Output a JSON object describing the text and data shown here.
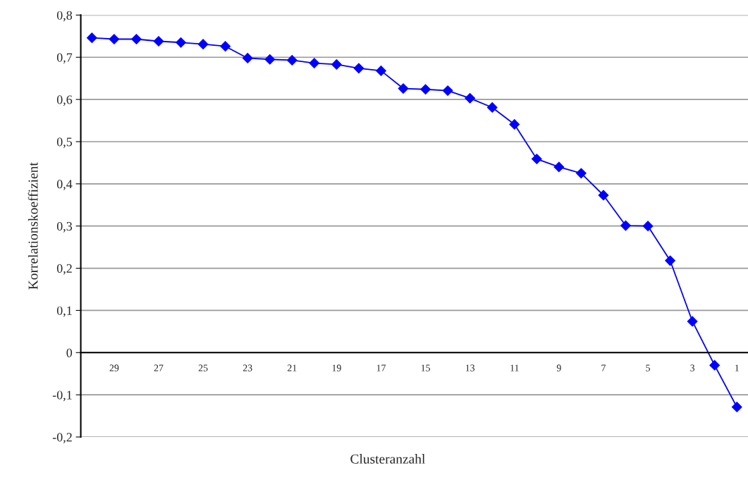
{
  "chart_data": {
    "type": "line",
    "xlabel": "Clusteranzahl",
    "ylabel": "Korrelationskoeffizient",
    "categories": [
      null,
      "29",
      null,
      "27",
      null,
      "25",
      null,
      "23",
      null,
      "21",
      null,
      "19",
      null,
      "17",
      null,
      "15",
      null,
      "13",
      null,
      "11",
      null,
      "9",
      null,
      "7",
      null,
      "5",
      null,
      "3",
      null,
      "1"
    ],
    "series": [
      {
        "color": "#0000ff",
        "values": [
          0.746,
          0.743,
          0.743,
          0.738,
          0.735,
          0.731,
          0.726,
          0.698,
          0.695,
          0.693,
          0.686,
          0.683,
          0.674,
          0.668,
          0.626,
          0.624,
          0.621,
          0.603,
          0.581,
          0.541,
          0.459,
          0.44,
          0.425,
          0.373,
          0.301,
          0.3,
          0.218,
          0.074,
          -0.03,
          -0.129
        ]
      }
    ],
    "ylim": [
      -0.2,
      0.8
    ],
    "yticks": [
      {
        "value": -0.2,
        "label": "-0,2"
      },
      {
        "value": -0.1,
        "label": "-0,1"
      },
      {
        "value": 0,
        "label": "0"
      },
      {
        "value": 0.1,
        "label": "0,1"
      },
      {
        "value": 0.2,
        "label": "0,2"
      },
      {
        "value": 0.3,
        "label": "0,3"
      },
      {
        "value": 0.4,
        "label": "0,4"
      },
      {
        "value": 0.5,
        "label": "0,5"
      },
      {
        "value": 0.6,
        "label": "0,6"
      },
      {
        "value": 0.7,
        "label": "0,7"
      },
      {
        "value": 0.8,
        "label": "0,8"
      }
    ],
    "grid": "y",
    "marker": "diamond",
    "line_style": "solid",
    "legend": false
  }
}
